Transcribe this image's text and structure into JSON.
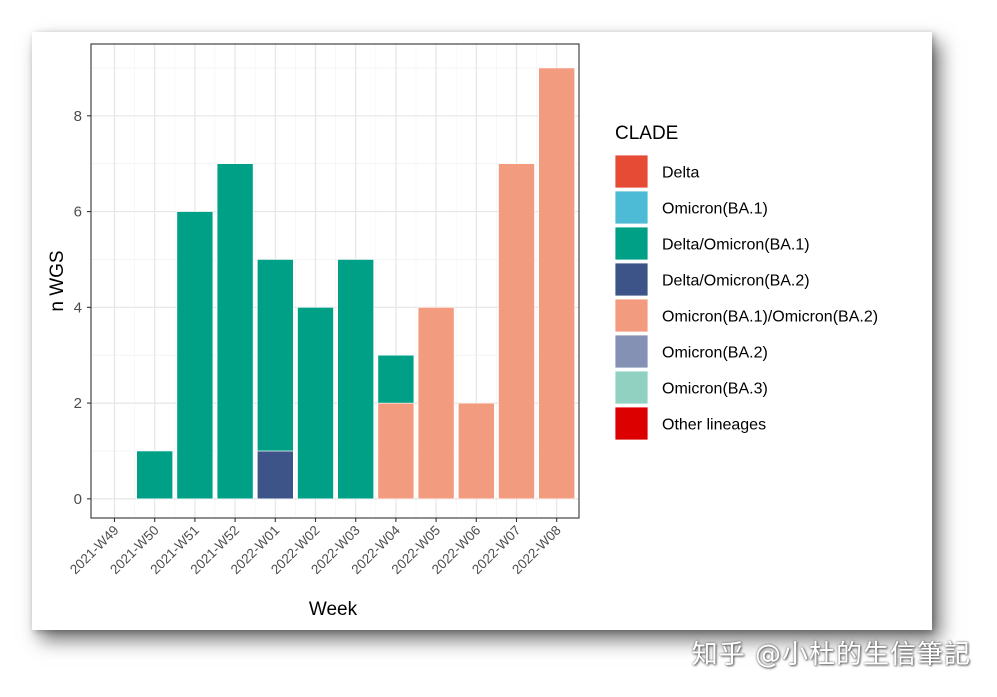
{
  "watermark": "知乎 @小杜的生信筆記",
  "chart_data": {
    "type": "bar",
    "stacked": true,
    "xlabel": "Week",
    "ylabel": "n WGS",
    "ylim": [
      -0.4,
      9.5
    ],
    "yticks": [
      0,
      2,
      4,
      6,
      8
    ],
    "grid": true,
    "legend_position": "right",
    "categories": [
      "2021-W49",
      "2021-W50",
      "2021-W51",
      "2021-W52",
      "2022-W01",
      "2022-W02",
      "2022-W03",
      "2022-W04",
      "2022-W05",
      "2022-W06",
      "2022-W07",
      "2022-W08"
    ],
    "legend": {
      "title": "CLADE",
      "entries": [
        {
          "label": "Delta",
          "color": "#E64B35"
        },
        {
          "label": "Omicron(BA.1)",
          "color": "#4DBBD5"
        },
        {
          "label": "Delta/Omicron(BA.1)",
          "color": "#00A087"
        },
        {
          "label": "Delta/Omicron(BA.2)",
          "color": "#3C5488"
        },
        {
          "label": "Omicron(BA.1)/Omicron(BA.2)",
          "color": "#F39B7F"
        },
        {
          "label": "Omicron(BA.2)",
          "color": "#8491B4"
        },
        {
          "label": "Omicron(BA.3)",
          "color": "#91D1C2"
        },
        {
          "label": "Other lineages",
          "color": "#DC0000"
        }
      ]
    },
    "series": [
      {
        "name": "Delta/Omicron(BA.2)",
        "color": "#3C5488",
        "values": [
          0,
          0,
          0,
          0,
          1,
          0,
          0,
          0,
          0,
          0,
          0,
          0
        ]
      },
      {
        "name": "Omicron(BA.1)/Omicron(BA.2)",
        "color": "#F39B7F",
        "values": [
          0,
          0,
          0,
          0,
          0,
          0,
          0,
          2,
          4,
          2,
          7,
          9
        ]
      },
      {
        "name": "Delta/Omicron(BA.1)",
        "color": "#00A087",
        "values": [
          0,
          1,
          6,
          7,
          4,
          4,
          5,
          1,
          0,
          0,
          0,
          0
        ]
      }
    ]
  }
}
